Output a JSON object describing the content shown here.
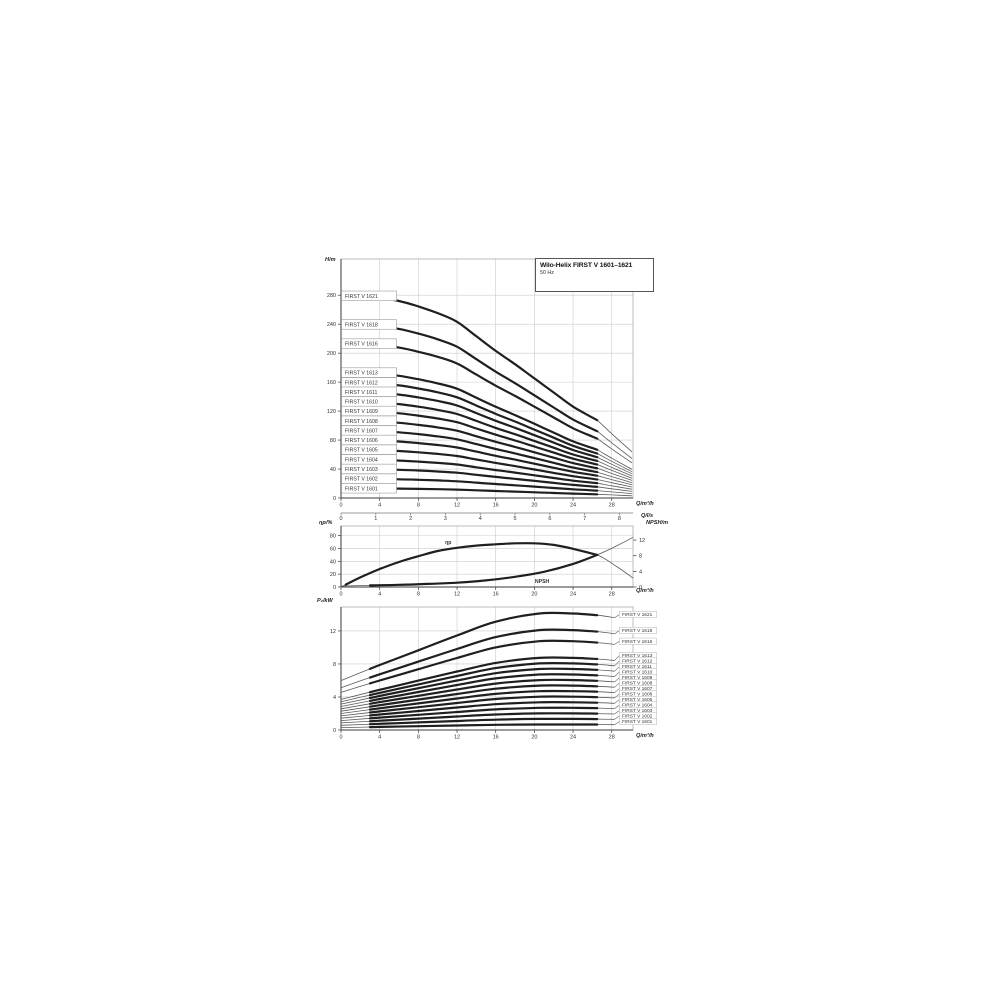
{
  "title_box": {
    "title": "Wilo-Helix FIRST V 1601–1621",
    "subtitle": "50 Hz"
  },
  "chart_data": [
    {
      "id": "head-flow",
      "type": "line",
      "ylabel": "H/m",
      "xlabel": "Q/m³/h",
      "xlabel_secondary": "Q/l/s",
      "xlim": [
        0,
        30.2
      ],
      "ylim": [
        0,
        330
      ],
      "xticks": [
        0,
        4,
        8,
        12,
        16,
        20,
        24,
        28
      ],
      "yticks": [
        0,
        40,
        80,
        120,
        160,
        200,
        240,
        280
      ],
      "xticks_secondary": [
        0,
        1,
        2,
        3,
        4,
        5,
        6,
        7,
        8
      ],
      "grid": true,
      "q": [
        0,
        2,
        4,
        6,
        8,
        10,
        12,
        14,
        16,
        18,
        20,
        22,
        24,
        26,
        26.5,
        28,
        30.1
      ],
      "head_fraction_of_h0": [
        1.0,
        0.998,
        0.99,
        0.975,
        0.948,
        0.915,
        0.872,
        0.8,
        0.728,
        0.662,
        0.592,
        0.522,
        0.452,
        0.398,
        0.385,
        0.318,
        0.228
      ],
      "thick_range_q": [
        3,
        26.5
      ],
      "series": [
        {
          "name": "FIRST V 1621",
          "h0": 279
        },
        {
          "name": "FIRST V 1618",
          "h0": 239.5
        },
        {
          "name": "FIRST V 1616",
          "h0": 213
        },
        {
          "name": "FIRST V 1613",
          "h0": 173
        },
        {
          "name": "FIRST V 1612",
          "h0": 159.5
        },
        {
          "name": "FIRST V 1611",
          "h0": 146.5
        },
        {
          "name": "FIRST V 1610",
          "h0": 133
        },
        {
          "name": "FIRST V 1609",
          "h0": 120
        },
        {
          "name": "FIRST V 1608",
          "h0": 106.5
        },
        {
          "name": "FIRST V 1607",
          "h0": 93
        },
        {
          "name": "FIRST V 1606",
          "h0": 80
        },
        {
          "name": "FIRST V 1605",
          "h0": 66.5
        },
        {
          "name": "FIRST V 1604",
          "h0": 53
        },
        {
          "name": "FIRST V 1603",
          "h0": 40
        },
        {
          "name": "FIRST V 1602",
          "h0": 26.5
        },
        {
          "name": "FIRST V 1601",
          "h0": 13.3
        }
      ]
    },
    {
      "id": "efficiency-npsh",
      "type": "line",
      "ylabel": "ηp/%",
      "ylabel_right": "NPSH/m",
      "xlabel": "Q/m³/h",
      "xlim": [
        0,
        30.2
      ],
      "ylim": [
        0,
        95
      ],
      "ylim_right": [
        0,
        15.6
      ],
      "xticks": [
        0,
        4,
        8,
        12,
        16,
        20,
        24,
        28
      ],
      "yticks": [
        0,
        20,
        40,
        60,
        80
      ],
      "yticks_right": [
        0,
        4,
        8,
        12
      ],
      "grid": true,
      "series": [
        {
          "name": "ηp",
          "axis": "left",
          "q": [
            0,
            2,
            4,
            6,
            8,
            10,
            12,
            14,
            16,
            18,
            20,
            22,
            24,
            26.5,
            28.5,
            30.2
          ],
          "v": [
            0,
            15,
            28,
            39,
            48,
            56,
            61,
            64.5,
            66.5,
            68,
            68,
            65.5,
            59.5,
            50,
            32,
            14
          ],
          "thick_range_q": [
            0.5,
            26.5
          ],
          "label_pos": [
            11.1,
            67
          ]
        },
        {
          "name": "NPSH",
          "axis": "right",
          "q": [
            0,
            3,
            6,
            9,
            12,
            15,
            18,
            21,
            24,
            26.5,
            28.5,
            30.2
          ],
          "v": [
            0.25,
            0.4,
            0.55,
            0.8,
            1.1,
            1.7,
            2.6,
            3.9,
            5.9,
            8.2,
            10.5,
            12.7
          ],
          "thick_range_q": [
            3,
            26.5
          ],
          "label_pos": [
            20.8,
            1.0
          ]
        }
      ]
    },
    {
      "id": "power-flow",
      "type": "line",
      "ylabel": "P₂/kW",
      "xlabel": "Q/m³/h",
      "xlim": [
        0,
        30.2
      ],
      "ylim": [
        0,
        14.9
      ],
      "xticks": [
        0,
        4,
        8,
        12,
        16,
        20,
        24,
        28
      ],
      "yticks": [
        0,
        4,
        8,
        12
      ],
      "grid": true,
      "q": [
        0,
        4,
        8,
        12,
        16,
        20.5,
        24,
        26.5,
        28.3
      ],
      "kw_per_stage": [
        0.285,
        0.375,
        0.46,
        0.545,
        0.625,
        0.672,
        0.672,
        0.662,
        0.648
      ],
      "thick_range_q": [
        3,
        26.5
      ],
      "series": [
        {
          "name": "FIRST V 1621",
          "stages": 21
        },
        {
          "name": "FIRST V 1618",
          "stages": 18
        },
        {
          "name": "FIRST V 1616",
          "stages": 16
        },
        {
          "name": "FIRST V 1613",
          "stages": 13
        },
        {
          "name": "FIRST V 1612",
          "stages": 12
        },
        {
          "name": "FIRST V 1611",
          "stages": 11
        },
        {
          "name": "FIRST V 1610",
          "stages": 10
        },
        {
          "name": "FIRST V 1609",
          "stages": 9
        },
        {
          "name": "FIRST V 1608",
          "stages": 8
        },
        {
          "name": "FIRST V 1607",
          "stages": 7
        },
        {
          "name": "FIRST V 1606",
          "stages": 6
        },
        {
          "name": "FIRST V 1605",
          "stages": 5
        },
        {
          "name": "FIRST V 1604",
          "stages": 4
        },
        {
          "name": "FIRST V 1603",
          "stages": 3
        },
        {
          "name": "FIRST V 1602",
          "stages": 2
        },
        {
          "name": "FIRST V 1601",
          "stages": 1
        }
      ]
    }
  ]
}
